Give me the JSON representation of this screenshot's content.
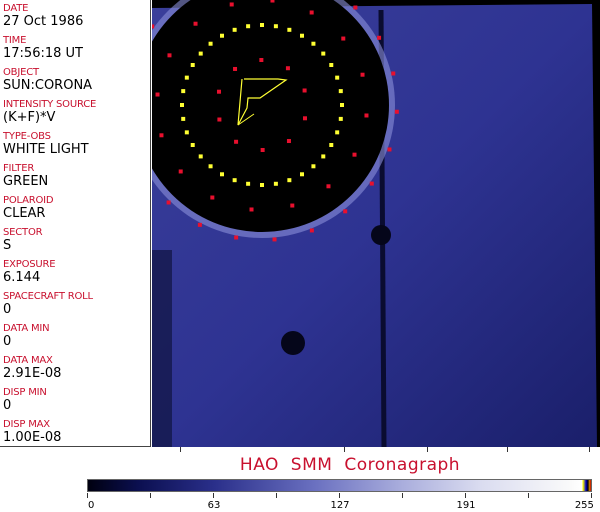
{
  "fields": [
    {
      "label": "DATE",
      "value": "27 Oct 1986"
    },
    {
      "label": "TIME",
      "value": "17:56:18 UT"
    },
    {
      "label": "OBJECT",
      "value": "SUN:CORONA"
    },
    {
      "label": "INTENSITY SOURCE",
      "value": "(K+F)*V"
    },
    {
      "label": "TYPE-OBS",
      "value": "WHITE LIGHT"
    },
    {
      "label": "FILTER",
      "value": "GREEN"
    },
    {
      "label": "POLAROID",
      "value": "CLEAR"
    },
    {
      "label": "SECTOR",
      "value": "S"
    },
    {
      "label": "EXPOSURE",
      "value": "6.144"
    },
    {
      "label": "SPACECRAFT ROLL",
      "value": "0"
    },
    {
      "label": "DATA MIN",
      "value": "0"
    },
    {
      "label": "DATA MAX",
      "value": "2.91E-08"
    },
    {
      "label": "DISP MIN",
      "value": "0"
    },
    {
      "label": "DISP MAX",
      "value": "1.00E-08"
    }
  ],
  "title": "HAO  SMM  Coronagraph",
  "colorbar": {
    "ticks": [
      "0",
      "63",
      "127",
      "191",
      "255"
    ]
  },
  "colors": {
    "label": "#c8102e",
    "field": "#2e3192",
    "occulter_ring": "#ffff33",
    "marks": "#e8102e"
  }
}
